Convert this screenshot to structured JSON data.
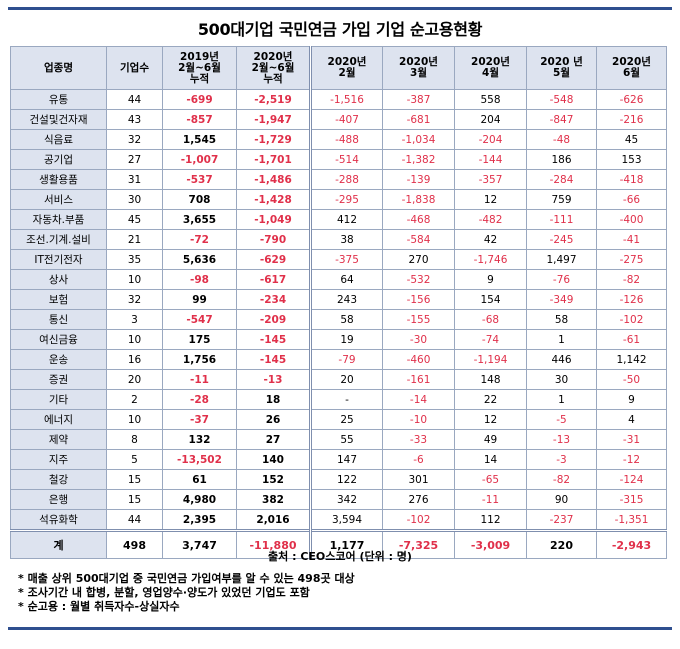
{
  "title": "500대기업 국민연금 가입 기업 순고용현황",
  "headers": {
    "industry": "업종명",
    "companies": "기업수",
    "cum2019_l1": "2019년",
    "cum2019_l2": "2월~6월",
    "cum2019_l3": "누적",
    "cum2020_l1": "2020년",
    "cum2020_l2": "2월~6월",
    "cum2020_l3": "누적",
    "feb_l1": "2020년",
    "feb_l2": "2월",
    "mar_l1": "2020년",
    "mar_l2": "3월",
    "apr_l1": "2020년",
    "apr_l2": "4월",
    "may_l1": "2020 년",
    "may_l2": "5월",
    "jun_l1": "2020년",
    "jun_l2": "6월"
  },
  "rows": [
    [
      "유통",
      "44",
      "-699",
      "-2,519",
      "-1,516",
      "-387",
      "558",
      "-548",
      "-626"
    ],
    [
      "건설및건자재",
      "43",
      "-857",
      "-1,947",
      "-407",
      "-681",
      "204",
      "-847",
      "-216"
    ],
    [
      "식음료",
      "32",
      "1,545",
      "-1,729",
      "-488",
      "-1,034",
      "-204",
      "-48",
      "45"
    ],
    [
      "공기업",
      "27",
      "-1,007",
      "-1,701",
      "-514",
      "-1,382",
      "-144",
      "186",
      "153"
    ],
    [
      "생활용품",
      "31",
      "-537",
      "-1,486",
      "-288",
      "-139",
      "-357",
      "-284",
      "-418"
    ],
    [
      "서비스",
      "30",
      "708",
      "-1,428",
      "-295",
      "-1,838",
      "12",
      "759",
      "-66"
    ],
    [
      "자동차.부품",
      "45",
      "3,655",
      "-1,049",
      "412",
      "-468",
      "-482",
      "-111",
      "-400"
    ],
    [
      "조선.기계.설비",
      "21",
      "-72",
      "-790",
      "38",
      "-584",
      "42",
      "-245",
      "-41"
    ],
    [
      "IT전기전자",
      "35",
      "5,636",
      "-629",
      "-375",
      "270",
      "-1,746",
      "1,497",
      "-275"
    ],
    [
      "상사",
      "10",
      "-98",
      "-617",
      "64",
      "-532",
      "9",
      "-76",
      "-82"
    ],
    [
      "보험",
      "32",
      "99",
      "-234",
      "243",
      "-156",
      "154",
      "-349",
      "-126"
    ],
    [
      "통신",
      "3",
      "-547",
      "-209",
      "58",
      "-155",
      "-68",
      "58",
      "-102"
    ],
    [
      "여신금융",
      "10",
      "175",
      "-145",
      "19",
      "-30",
      "-74",
      "1",
      "-61"
    ],
    [
      "운송",
      "16",
      "1,756",
      "-145",
      "-79",
      "-460",
      "-1,194",
      "446",
      "1,142"
    ],
    [
      "증권",
      "20",
      "-11",
      "-13",
      "20",
      "-161",
      "148",
      "30",
      "-50"
    ],
    [
      "기타",
      "2",
      "-28",
      "18",
      "-",
      "-14",
      "22",
      "1",
      "9"
    ],
    [
      "에너지",
      "10",
      "-37",
      "26",
      "25",
      "-10",
      "12",
      "-5",
      "4"
    ],
    [
      "제약",
      "8",
      "132",
      "27",
      "55",
      "-33",
      "49",
      "-13",
      "-31"
    ],
    [
      "지주",
      "5",
      "-13,502",
      "140",
      "147",
      "-6",
      "14",
      "-3",
      "-12"
    ],
    [
      "철강",
      "15",
      "61",
      "152",
      "122",
      "301",
      "-65",
      "-82",
      "-124"
    ],
    [
      "은행",
      "15",
      "4,980",
      "382",
      "342",
      "276",
      "-11",
      "90",
      "-315"
    ],
    [
      "석유화학",
      "44",
      "2,395",
      "2,016",
      "3,594",
      "-102",
      "112",
      "-237",
      "-1,351"
    ]
  ],
  "total": [
    "계",
    "498",
    "3,747",
    "-11,880",
    "1,177",
    "-7,325",
    "-3,009",
    "220",
    "-2,943"
  ],
  "colors": {
    "negative": "#e0304a",
    "header_bg": "#dde3ef",
    "rule": "#2f4f8f"
  },
  "source": "출처 : CEO스코어 (단위 : 명)",
  "notes": [
    "* 매출 상위 500대기업 중 국민연금 가입여부를 알 수 있는 498곳 대상",
    "* 조사기간 내 합병, 분할, 영업양수·양도가 있었던 기업도 포함",
    "* 순고용 : 월별 취득자수-상실자수"
  ]
}
